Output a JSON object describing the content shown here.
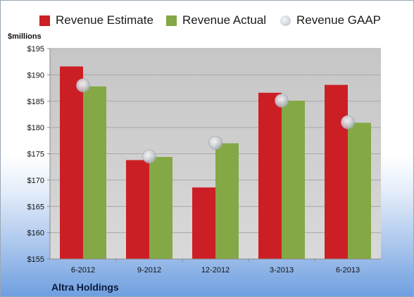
{
  "chart_data": {
    "type": "bar",
    "unit_label": "$millions",
    "company": "Altra Holdings",
    "categories": [
      "6-2012",
      "9-2012",
      "12-2012",
      "3-2013",
      "6-2013"
    ],
    "series": [
      {
        "name": "Revenue Estimate",
        "kind": "bar",
        "color": "#cc1f25",
        "values": [
          191.6,
          173.8,
          168.6,
          186.6,
          188.1
        ]
      },
      {
        "name": "Revenue Actual",
        "kind": "bar",
        "color": "#84a845",
        "values": [
          187.8,
          174.4,
          177.0,
          185.1,
          180.9
        ]
      },
      {
        "name": "Revenue GAAP",
        "kind": "marker",
        "color": "#c9ced5",
        "values": [
          188.0,
          174.5,
          177.1,
          185.1,
          181.0
        ]
      }
    ],
    "y_ticks": [
      "$155",
      "$160",
      "$165",
      "$170",
      "$175",
      "$180",
      "$185",
      "$190",
      "$195"
    ],
    "ylim": [
      155,
      195
    ],
    "grid": true,
    "legend_position": "top"
  }
}
